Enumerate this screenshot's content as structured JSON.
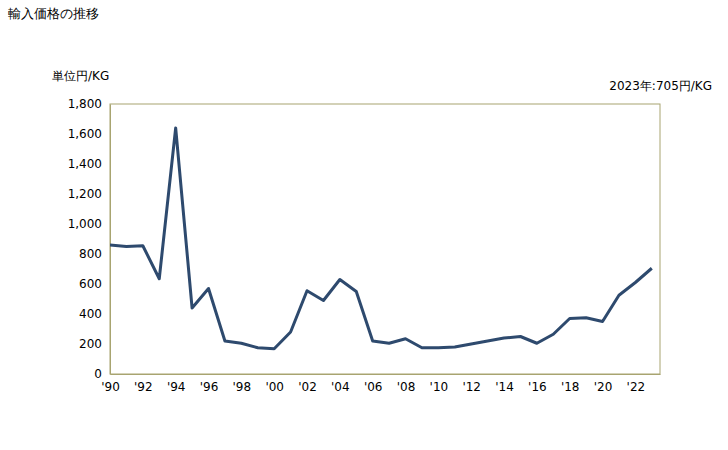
{
  "chart_data": {
    "type": "line",
    "title": "輸入価格の推移",
    "y_label": "単位円/KG",
    "annotation": "2023年:705円/KG",
    "color": "#2e4a6e",
    "x": [
      1990,
      1991,
      1992,
      1993,
      1994,
      1995,
      1996,
      1997,
      1998,
      1999,
      2000,
      2001,
      2002,
      2003,
      2004,
      2005,
      2006,
      2007,
      2008,
      2009,
      2010,
      2011,
      2012,
      2013,
      2014,
      2015,
      2016,
      2017,
      2018,
      2019,
      2020,
      2021,
      2022,
      2023
    ],
    "values": [
      860,
      850,
      855,
      635,
      1640,
      440,
      570,
      220,
      205,
      175,
      168,
      280,
      555,
      490,
      630,
      550,
      220,
      205,
      235,
      175,
      175,
      180,
      200,
      220,
      240,
      250,
      205,
      265,
      370,
      375,
      350,
      525,
      610,
      705
    ],
    "xlim": [
      1990,
      2023.5
    ],
    "xticks": [
      {
        "value": 1990,
        "label": "'90"
      },
      {
        "value": 1992,
        "label": "'92"
      },
      {
        "value": 1994,
        "label": "'94"
      },
      {
        "value": 1996,
        "label": "'96"
      },
      {
        "value": 1998,
        "label": "'98"
      },
      {
        "value": 2000,
        "label": "'00"
      },
      {
        "value": 2002,
        "label": "'02"
      },
      {
        "value": 2004,
        "label": "'04"
      },
      {
        "value": 2006,
        "label": "'06"
      },
      {
        "value": 2008,
        "label": "'08"
      },
      {
        "value": 2010,
        "label": "'10"
      },
      {
        "value": 2012,
        "label": "'12"
      },
      {
        "value": 2014,
        "label": "'14"
      },
      {
        "value": 2016,
        "label": "'16"
      },
      {
        "value": 2018,
        "label": "'18"
      },
      {
        "value": 2020,
        "label": "'20"
      },
      {
        "value": 2022,
        "label": "'22"
      }
    ],
    "ylim": [
      0,
      1800
    ],
    "yticks": [
      0,
      200,
      400,
      600,
      800,
      {
        "value": 1000,
        "label": "1,000"
      },
      {
        "value": 1200,
        "label": "1,200"
      },
      {
        "value": 1400,
        "label": "1,400"
      },
      {
        "value": 1600,
        "label": "1,600"
      },
      {
        "value": 1800,
        "label": "1,800"
      }
    ],
    "grid": false
  }
}
